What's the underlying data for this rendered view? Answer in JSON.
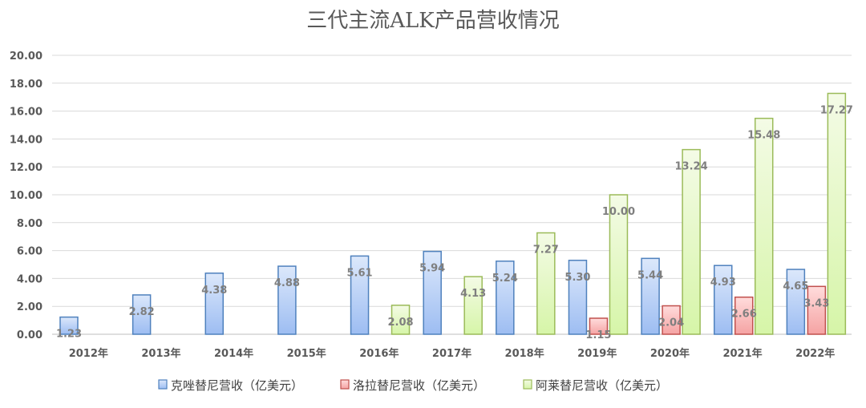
{
  "chart_data": {
    "type": "bar",
    "title": "三代主流ALK产品营收情况",
    "xlabel": "",
    "ylabel": "",
    "ylim": [
      0,
      20
    ],
    "yticks": [
      "0.00",
      "2.00",
      "4.00",
      "6.00",
      "8.00",
      "10.00",
      "12.00",
      "14.00",
      "16.00",
      "18.00",
      "20.00"
    ],
    "grid": true,
    "legend_position": "bottom",
    "categories": [
      "2012年",
      "2013年",
      "2014年",
      "2015年",
      "2016年",
      "2017年",
      "2018年",
      "2019年",
      "2020年",
      "2021年",
      "2022年"
    ],
    "series": [
      {
        "name": "克唑替尼营收（亿美元）",
        "color": "#4f81bd",
        "fill_top": "#dce8fb",
        "fill_bottom": "#9dbdf2",
        "values": [
          1.23,
          2.82,
          4.38,
          4.88,
          5.61,
          5.94,
          5.24,
          5.3,
          5.44,
          4.93,
          4.65
        ],
        "labels": [
          "1.23",
          "2.82",
          "4.38",
          "4.88",
          "5.61",
          "5.94",
          "5.24",
          "5.30",
          "5.44",
          "4.93",
          "4.65"
        ]
      },
      {
        "name": "洛拉替尼营收（亿美元）",
        "color": "#c0504d",
        "fill_top": "#ffdcdc",
        "fill_bottom": "#f5a3a3",
        "values": [
          null,
          null,
          null,
          null,
          null,
          null,
          null,
          1.15,
          2.04,
          2.66,
          3.43
        ],
        "labels": [
          null,
          null,
          null,
          null,
          null,
          null,
          null,
          "1.15",
          "2.04",
          "2.66",
          "3.43"
        ]
      },
      {
        "name": "阿莱替尼营收（亿美元）",
        "color": "#9bbb59",
        "fill_top": "#f4fbe6",
        "fill_bottom": "#d6f5a8",
        "values": [
          null,
          null,
          null,
          null,
          2.08,
          4.13,
          7.27,
          10.0,
          13.24,
          15.48,
          17.27
        ],
        "labels": [
          null,
          null,
          null,
          null,
          "2.08",
          "4.13",
          "7.27",
          "10.00",
          "13.24",
          "15.48",
          "17.27"
        ]
      }
    ]
  }
}
